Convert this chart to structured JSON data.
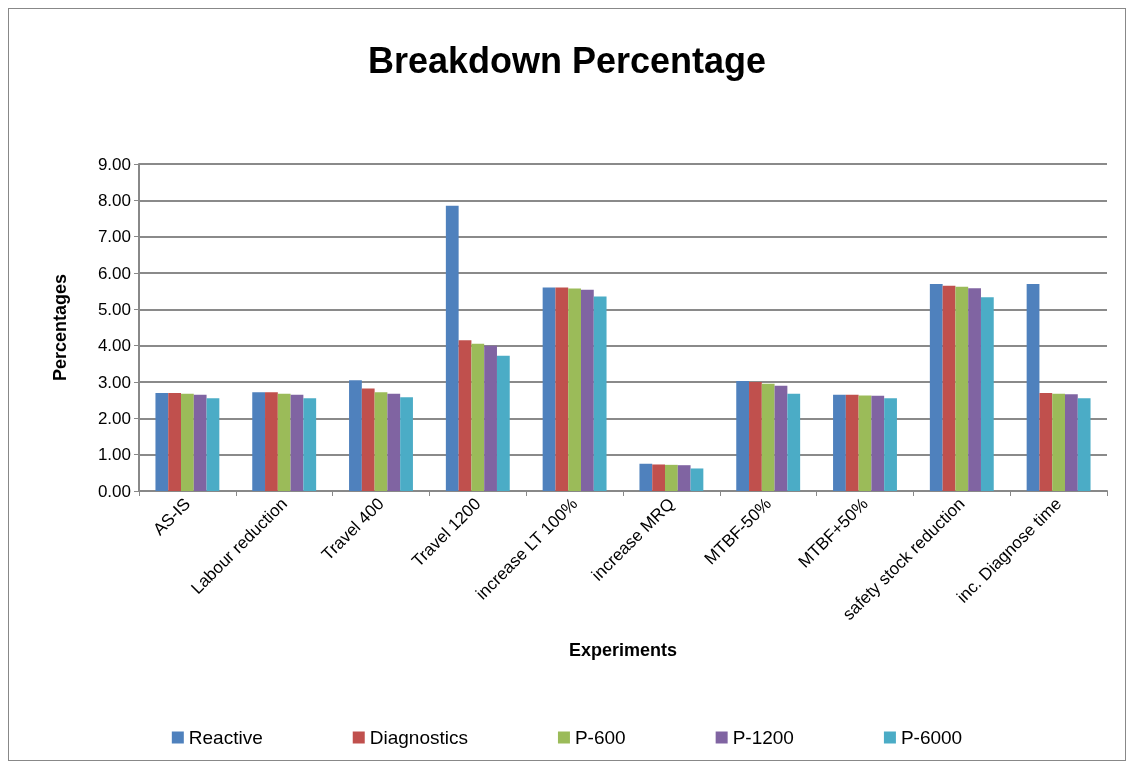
{
  "chart_data": {
    "type": "bar",
    "title": "Breakdown Percentage",
    "xlabel": "Experiments",
    "ylabel": "Percentages",
    "categories": [
      "AS-IS",
      "Labour reduction",
      "Travel 400",
      "Travel 1200",
      "increase LT 100%",
      "increase MRQ",
      "MTBF-50%",
      "MTBF+50%",
      "safety stock reduction",
      "inc. Diagnose time"
    ],
    "series": [
      {
        "name": "Reactive",
        "color": "#4f81bd",
        "values": [
          2.7,
          2.72,
          3.05,
          7.85,
          5.6,
          0.75,
          3.03,
          2.65,
          5.7,
          5.7
        ]
      },
      {
        "name": "Diagnostics",
        "color": "#c0504d",
        "values": [
          2.7,
          2.72,
          2.82,
          4.15,
          5.6,
          0.73,
          3.0,
          2.65,
          5.65,
          2.7
        ]
      },
      {
        "name": "P-600",
        "color": "#9bbb59",
        "values": [
          2.68,
          2.68,
          2.72,
          4.05,
          5.57,
          0.72,
          2.95,
          2.63,
          5.62,
          2.68
        ]
      },
      {
        "name": "P-1200",
        "color": "#8064a2",
        "values": [
          2.65,
          2.65,
          2.68,
          4.0,
          5.54,
          0.71,
          2.9,
          2.62,
          5.58,
          2.66
        ]
      },
      {
        "name": "P-6000",
        "color": "#4bacc6",
        "values": [
          2.55,
          2.55,
          2.58,
          3.72,
          5.35,
          0.62,
          2.68,
          2.55,
          5.33,
          2.55
        ]
      }
    ],
    "ylim": [
      0,
      9
    ],
    "yticks": [
      {
        "value": 0,
        "label": "0.00"
      },
      {
        "value": 1,
        "label": "1.00"
      },
      {
        "value": 2,
        "label": "2.00"
      },
      {
        "value": 3,
        "label": "3.00"
      },
      {
        "value": 4,
        "label": "4.00"
      },
      {
        "value": 5,
        "label": "5.00"
      },
      {
        "value": 6,
        "label": "6.00"
      },
      {
        "value": 7,
        "label": "7.00"
      },
      {
        "value": 8,
        "label": "8.00"
      },
      {
        "value": 9,
        "label": "9.00"
      }
    ],
    "grid": "y",
    "legend": "bottom"
  }
}
